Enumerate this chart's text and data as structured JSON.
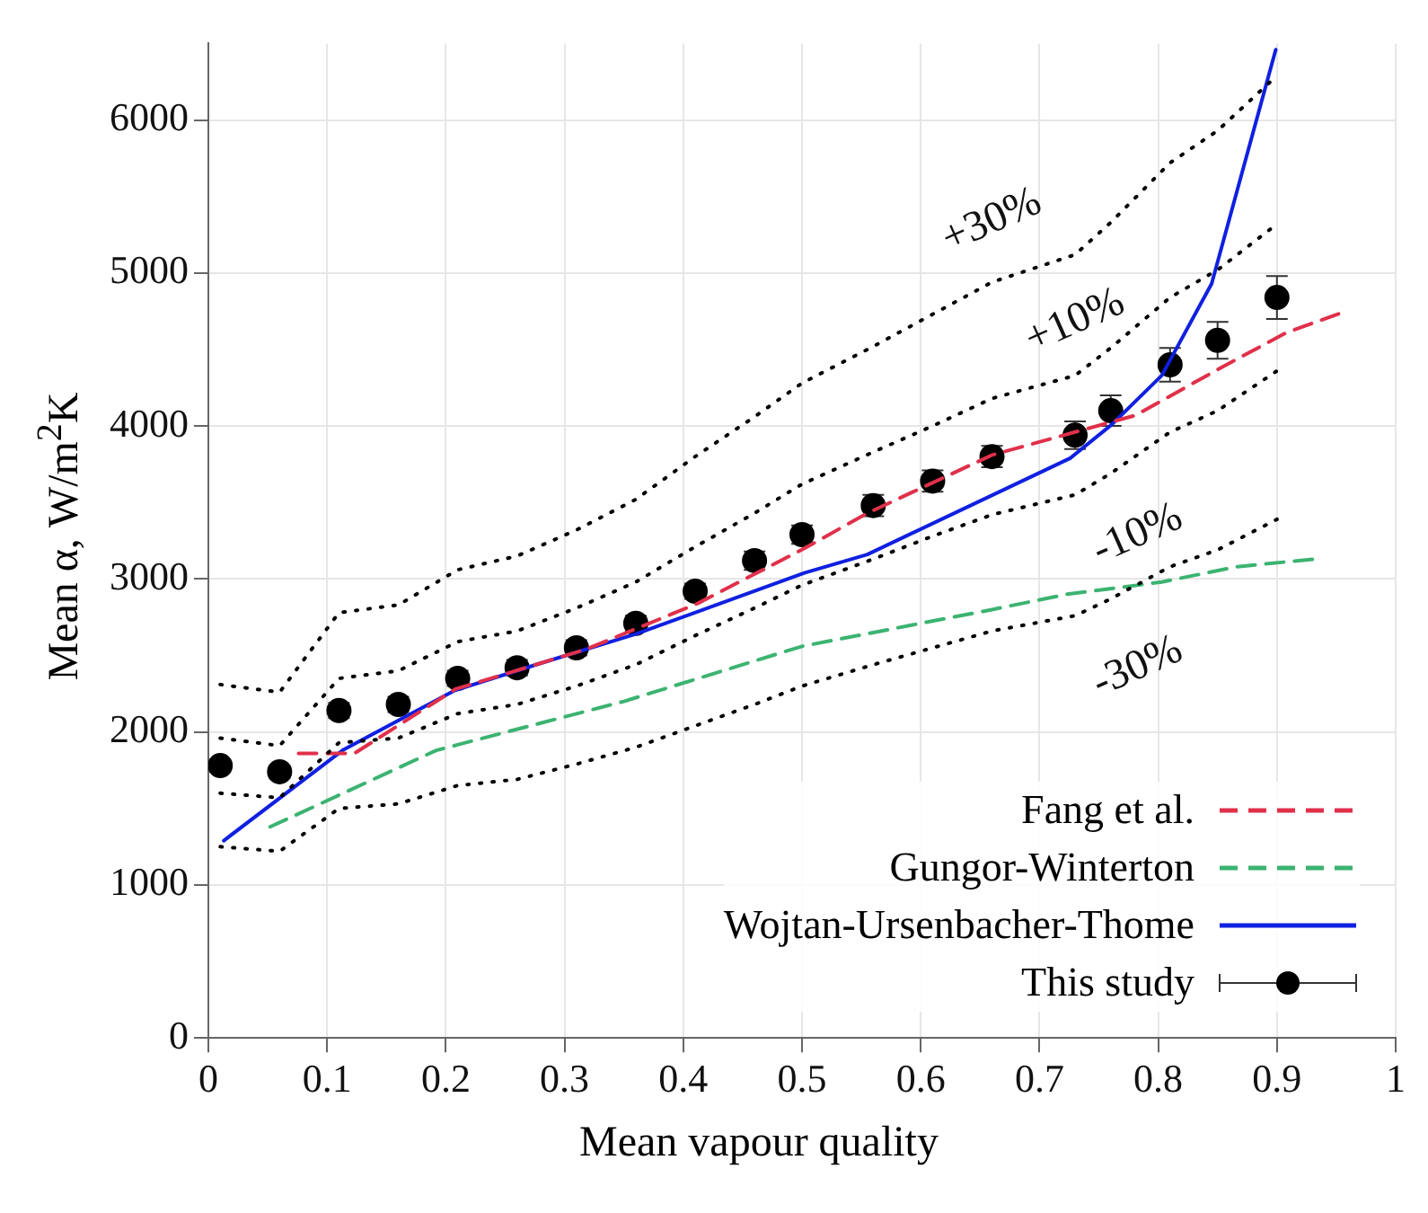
{
  "chart_data": {
    "type": "line",
    "xlabel": "Mean vapour quality",
    "ylabel": "Mean α, W/m$^{2}$K",
    "xlim": [
      0,
      1
    ],
    "xticks": [
      0,
      0.1,
      0.2,
      0.3,
      0.4,
      0.5,
      0.6,
      0.7,
      0.8,
      0.9,
      1
    ],
    "ylim": [
      0,
      6500
    ],
    "yticks": [
      0,
      1000,
      2000,
      3000,
      4000,
      5000,
      6000
    ],
    "grid": true,
    "legend": "bottom right",
    "x": [
      0.01,
      0.06,
      0.11,
      0.16,
      0.21,
      0.26,
      0.31,
      0.36,
      0.41,
      0.46,
      0.5,
      0.56,
      0.61,
      0.66,
      0.73,
      0.76,
      0.81,
      0.85,
      0.9
    ],
    "series": [
      {
        "type": "line",
        "line_style": "dotted",
        "marker": "none",
        "color": "#000000",
        "values": [
          2310,
          2260,
          2780,
          2830,
          3060,
          3150,
          3320,
          3520,
          3800,
          4060,
          4280,
          4520,
          4730,
          4940,
          5120,
          5330,
          5720,
          5930,
          6290
        ]
      },
      {
        "type": "line",
        "line_style": "dotted",
        "marker": "none",
        "color": "#000000",
        "values": [
          1960,
          1910,
          2350,
          2400,
          2590,
          2660,
          2810,
          2980,
          3210,
          3430,
          3620,
          3830,
          4000,
          4180,
          4330,
          4510,
          4840,
          5020,
          5320
        ]
      },
      {
        "type": "line",
        "line_style": "dotted",
        "marker": "none",
        "color": "#000000",
        "values": [
          1600,
          1570,
          1930,
          1960,
          2120,
          2180,
          2300,
          2440,
          2630,
          2810,
          2960,
          3130,
          3280,
          3420,
          3550,
          3690,
          3960,
          4100,
          4360
        ]
      },
      {
        "type": "line",
        "line_style": "dotted",
        "marker": "none",
        "color": "#000000",
        "values": [
          1250,
          1220,
          1500,
          1530,
          1650,
          1690,
          1790,
          1900,
          2040,
          2180,
          2300,
          2440,
          2550,
          2660,
          2760,
          2870,
          3080,
          3190,
          3390
        ]
      },
      {
        "type": "line",
        "name": "Fang et al.",
        "line_style": "dashed",
        "marker": "none",
        "color": "#e0304a",
        "x": [
          0.076,
          0.123,
          0.208,
          0.318,
          0.412,
          0.502,
          0.555,
          0.66,
          0.781,
          0.855,
          0.908,
          0.958
        ],
        "values": [
          1860,
          1860,
          2280,
          2540,
          2840,
          3200,
          3430,
          3810,
          4070,
          4390,
          4610,
          4750
        ]
      },
      {
        "type": "line",
        "name": "Gungor-Winterton",
        "line_style": "dashed",
        "marker": "none",
        "color": "#3cb371",
        "x": [
          0.052,
          0.192,
          0.35,
          0.5,
          0.66,
          0.723,
          0.803,
          0.866,
          0.932
        ],
        "values": [
          1380,
          1880,
          2200,
          2560,
          2800,
          2900,
          2980,
          3080,
          3130
        ]
      },
      {
        "type": "line",
        "name": "Wojtan-Ursenbacher-Thome",
        "line_style": "solid",
        "marker": "none",
        "color": "#1020e0",
        "x": [
          0.013,
          0.113,
          0.207,
          0.276,
          0.36,
          0.502,
          0.555,
          0.726,
          0.761,
          0.803,
          0.845,
          0.899
        ],
        "values": [
          1290,
          1880,
          2270,
          2440,
          2640,
          3040,
          3160,
          3790,
          4010,
          4330,
          4930,
          6460
        ]
      },
      {
        "type": "scatter",
        "name": "This study",
        "marker": "circle",
        "color": "#000000",
        "values": [
          1780,
          1740,
          2140,
          2180,
          2350,
          2420,
          2550,
          2710,
          2920,
          3120,
          3290,
          3480,
          3640,
          3800,
          3940,
          4100,
          4400,
          4560,
          4840
        ],
        "errors": [
          40,
          40,
          50,
          50,
          50,
          50,
          50,
          50,
          50,
          60,
          60,
          70,
          70,
          70,
          90,
          100,
          110,
          120,
          140
        ]
      }
    ],
    "annotations": [
      "+30%",
      "+10%",
      "-10%",
      "-30%"
    ]
  }
}
